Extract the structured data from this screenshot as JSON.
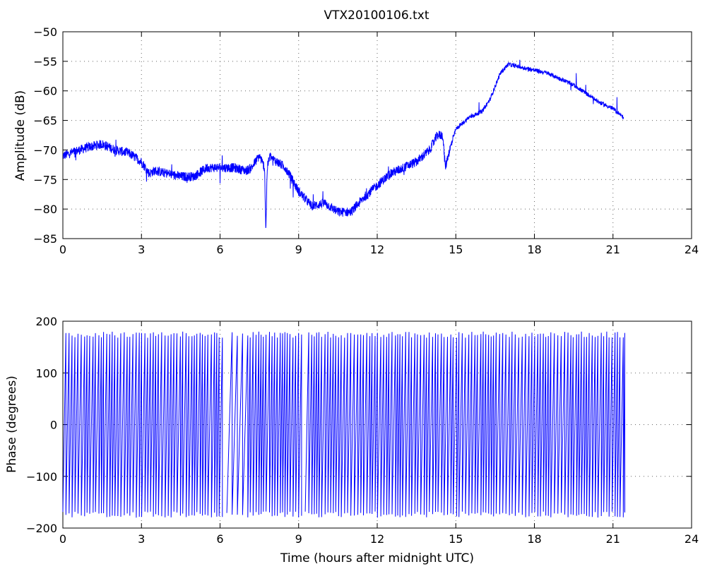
{
  "figure": {
    "title": "VTX20100106.txt",
    "line_color": "#0000ff"
  },
  "chart_data": [
    {
      "type": "line",
      "title": "VTX20100106.txt",
      "xlabel": "",
      "ylabel": "Amplitude (dB)",
      "xlim": [
        0,
        24
      ],
      "ylim": [
        -85,
        -50
      ],
      "xticks": [
        0,
        3,
        6,
        9,
        12,
        15,
        18,
        21,
        24
      ],
      "yticks": [
        -85,
        -80,
        -75,
        -70,
        -65,
        -60,
        -55,
        -50
      ],
      "xtick_labels": [
        "0",
        "3",
        "6",
        "9",
        "12",
        "15",
        "18",
        "21",
        "24"
      ],
      "ytick_labels": [
        "−85",
        "−80",
        "−75",
        "−70",
        "−65",
        "−60",
        "−55",
        "−50"
      ],
      "grid": true,
      "color": "#0000ff",
      "series": [
        {
          "x": [
            0,
            0.5,
            1,
            1.5,
            2,
            2.5,
            3,
            3.3,
            3.5,
            4,
            4.5,
            5,
            5.5,
            6,
            6.5,
            7,
            7.2,
            7.5,
            7.7,
            7.75,
            7.8,
            7.9,
            8,
            8.5,
            9,
            9.5,
            10,
            10.5,
            11,
            11.5,
            12,
            12.5,
            13,
            13.5,
            14,
            14.3,
            14.5,
            14.6,
            14.7,
            15,
            15.5,
            16,
            16.3,
            16.7,
            17,
            17.5,
            18,
            18.5,
            19,
            19.5,
            20,
            20.5,
            21,
            21.4
          ],
          "y": [
            -71,
            -70.2,
            -69.5,
            -69,
            -70,
            -70.5,
            -72,
            -74,
            -73.5,
            -74,
            -74.5,
            -74.5,
            -73,
            -73,
            -73,
            -73.5,
            -73,
            -71,
            -73,
            -84,
            -73,
            -71,
            -71.5,
            -73,
            -77,
            -79.5,
            -79,
            -80.5,
            -80.5,
            -78,
            -76,
            -74,
            -73,
            -72,
            -70,
            -67.5,
            -67.5,
            -73,
            -71,
            -66.5,
            -64.5,
            -63.5,
            -61.5,
            -57,
            -55.5,
            -56,
            -56.5,
            -57,
            -58,
            -59,
            -60.5,
            -62,
            -63,
            -64.5
          ]
        }
      ]
    },
    {
      "type": "line",
      "title": "",
      "xlabel": "Time (hours after midnight UTC)",
      "ylabel": "Phase (degrees)",
      "xlim": [
        0,
        24
      ],
      "ylim": [
        -200,
        200
      ],
      "xticks": [
        0,
        3,
        6,
        9,
        12,
        15,
        18,
        21,
        24
      ],
      "yticks": [
        -200,
        -100,
        0,
        100,
        200
      ],
      "xtick_labels": [
        "0",
        "3",
        "6",
        "9",
        "12",
        "15",
        "18",
        "21",
        "24"
      ],
      "ytick_labels": [
        "−200",
        "−100",
        "0",
        "100",
        "200"
      ],
      "grid": true,
      "color": "#0000ff",
      "series": [
        {
          "data_range_x": [
            0,
            21.45
          ],
          "amplitude_range": [
            -180,
            180
          ],
          "gaps_x": [
            [
              6.05,
              6.25
            ],
            [
              9.1,
              9.25
            ]
          ],
          "sparse_x": [
            6.25,
            6.9
          ]
        }
      ]
    }
  ]
}
